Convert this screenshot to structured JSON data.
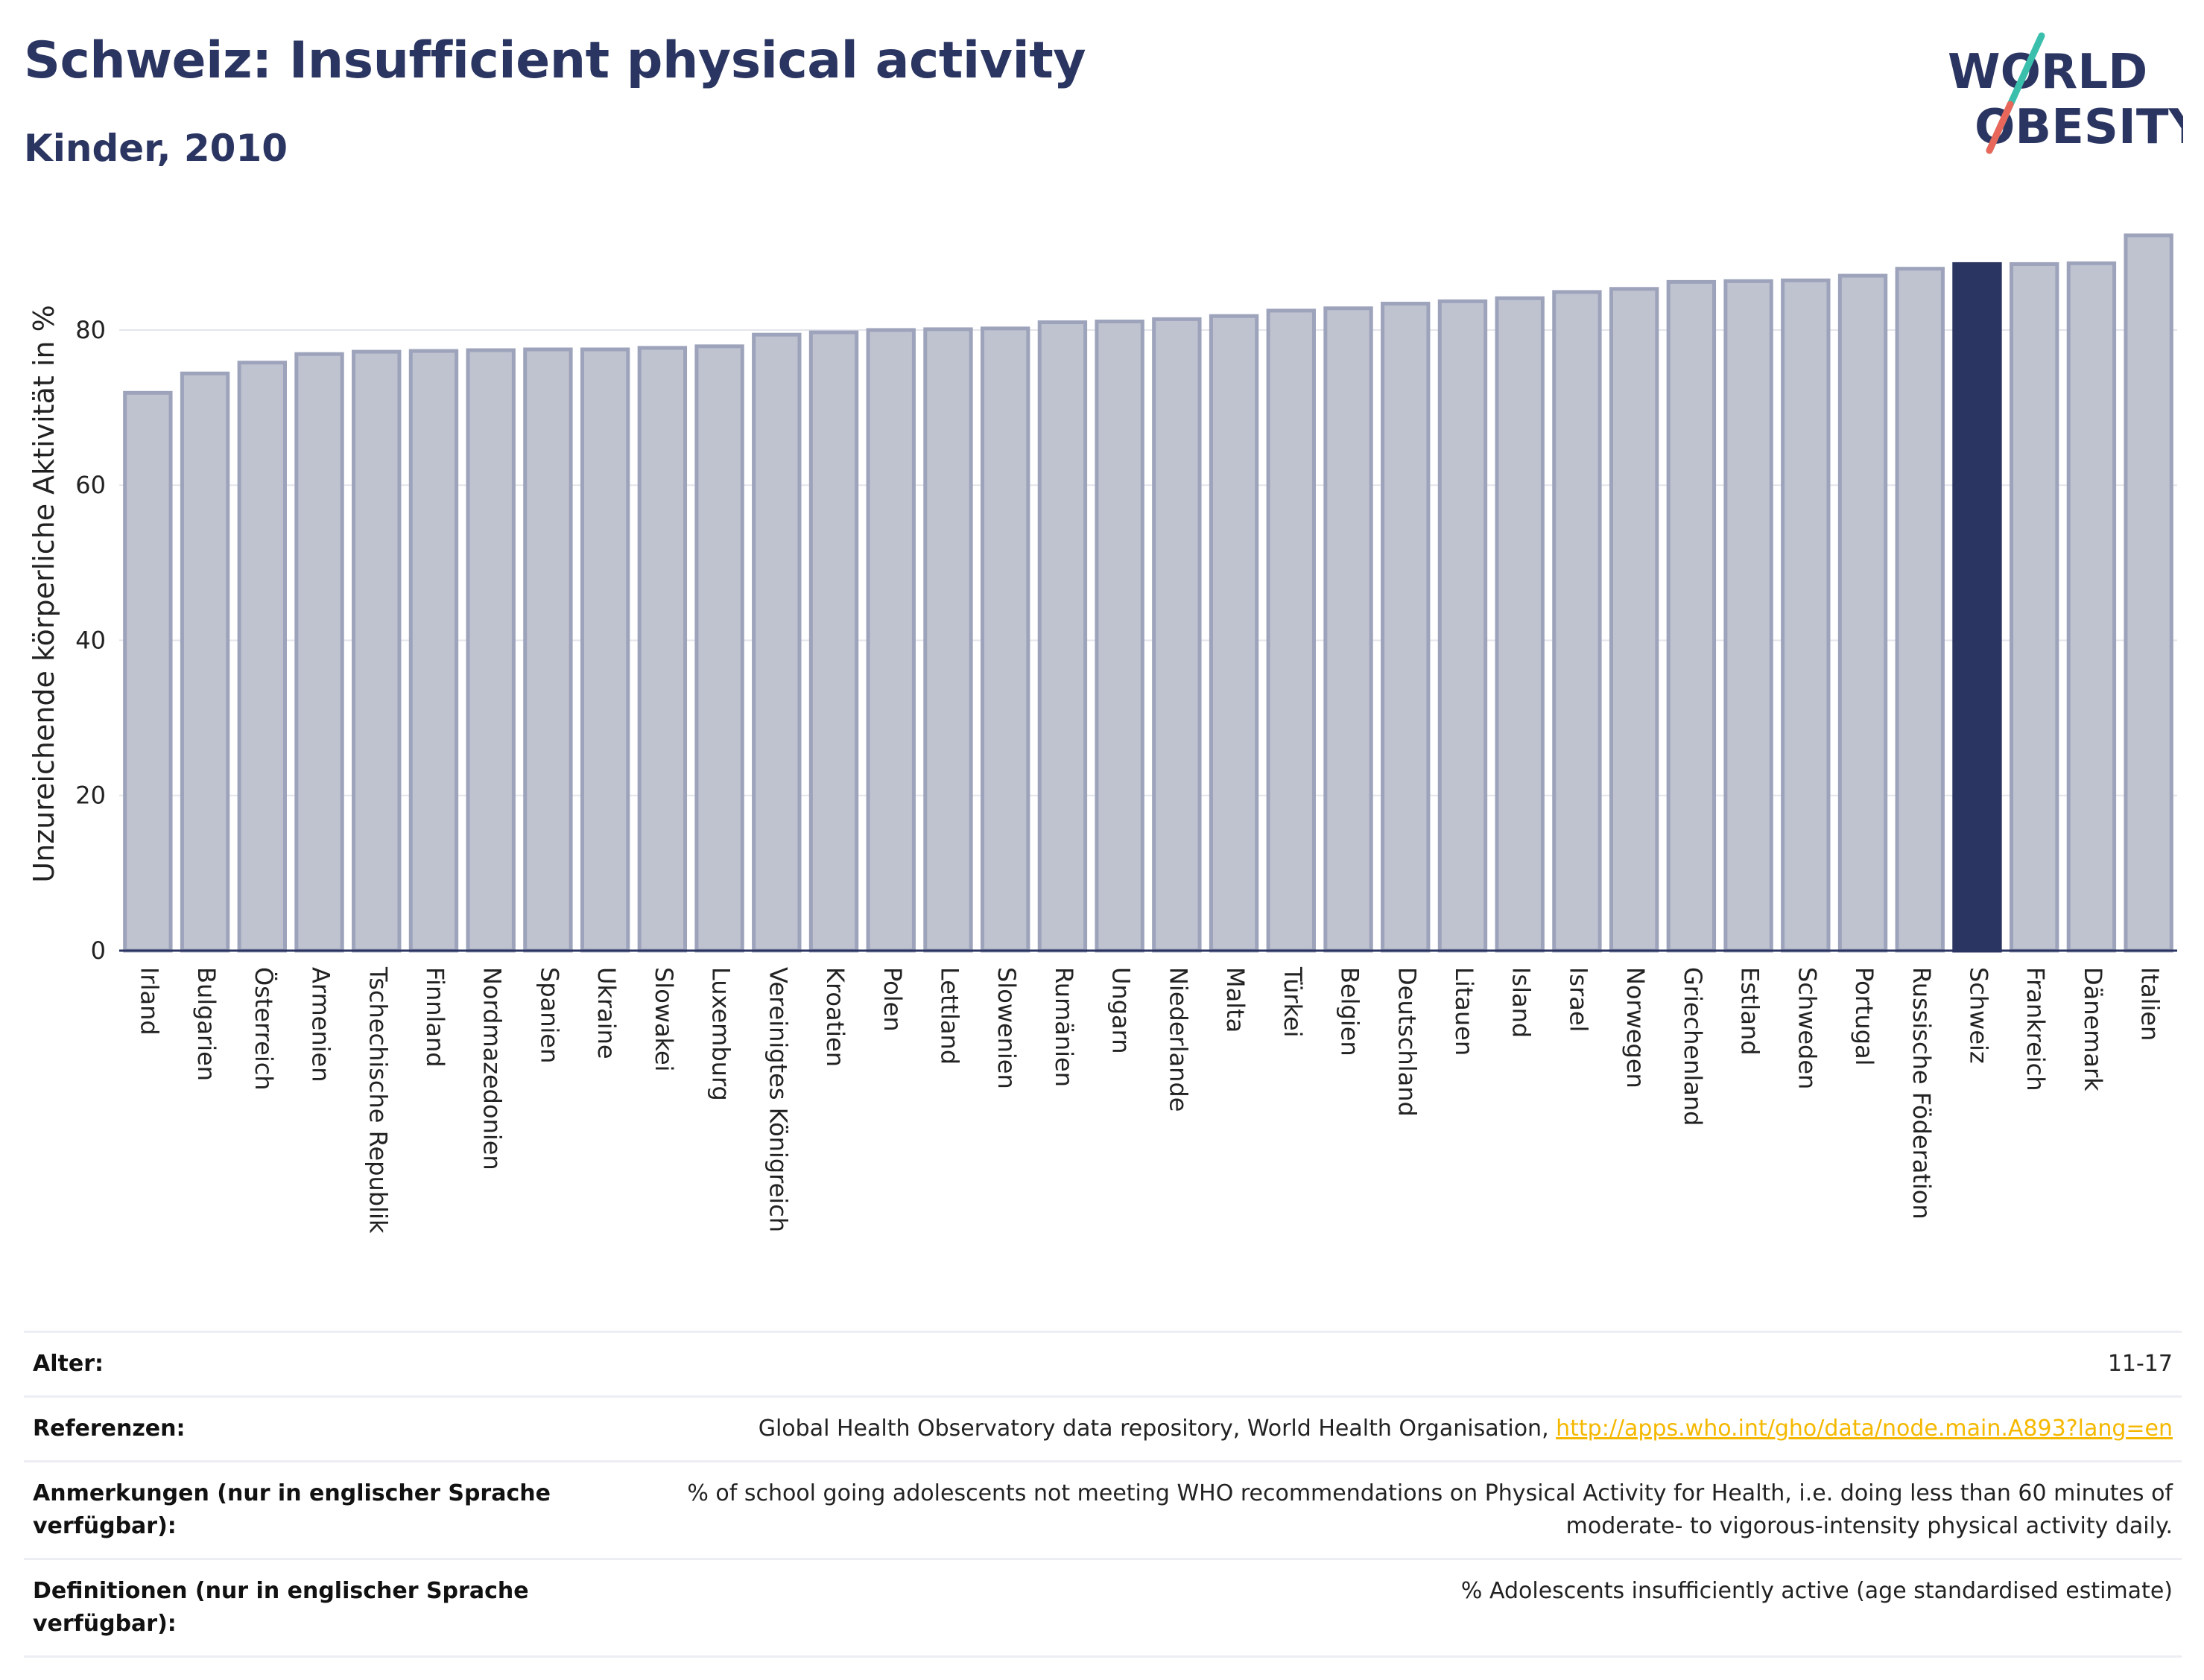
{
  "header": {
    "title": "Schweiz: Insufficient physical activity",
    "subtitle": "Kinder, 2010",
    "logo": {
      "line1": "WORLD",
      "line2": "OBESITY"
    }
  },
  "colors": {
    "bar_default": "#bfc3d0",
    "bar_border": "#9da3bb",
    "bar_highlight": "#2b3561",
    "title": "#2b3561",
    "link": "#f5b800",
    "logo_teal": "#3bbfad",
    "logo_red": "#e8665a"
  },
  "chart_data": {
    "type": "bar",
    "ylabel": "Unzureichende körperliche Aktivität in %",
    "ylim": [
      0,
      92
    ],
    "yticks": [
      0,
      20,
      40,
      60,
      80
    ],
    "highlight": "Schweiz",
    "grid": true,
    "categories": [
      "Irland",
      "Bulgarien",
      "Österreich",
      "Armenien",
      "Tschechische Republik",
      "Finnland",
      "Nordmazedonien",
      "Spanien",
      "Ukraine",
      "Slowakei",
      "Luxemburg",
      "Vereinigtes Königreich",
      "Kroatien",
      "Polen",
      "Lettland",
      "Slowenien",
      "Rumänien",
      "Ungarn",
      "Niederlande",
      "Malta",
      "Türkei",
      "Belgien",
      "Deutschland",
      "Litauen",
      "Island",
      "Israel",
      "Norwegen",
      "Griechenland",
      "Estland",
      "Schweden",
      "Portugal",
      "Russische Föderation",
      "Schweiz",
      "Frankreich",
      "Dänemark",
      "Italien"
    ],
    "values": [
      71.9,
      74.4,
      75.8,
      76.9,
      77.2,
      77.3,
      77.4,
      77.5,
      77.5,
      77.7,
      77.9,
      79.4,
      79.7,
      80.0,
      80.1,
      80.2,
      81.0,
      81.1,
      81.4,
      81.8,
      82.5,
      82.8,
      83.4,
      83.7,
      84.1,
      84.9,
      85.3,
      86.2,
      86.3,
      86.4,
      87.0,
      87.9,
      88.5,
      88.5,
      88.6,
      92.2
    ]
  },
  "meta": [
    {
      "label": "Alter:",
      "value": "11-17"
    },
    {
      "label": "Referenzen:",
      "value": "Global Health Observatory data repository, World Health Organisation, ",
      "link": "http://apps.who.int/gho/data/node.main.A893?lang=en"
    },
    {
      "label": "Anmerkungen (nur in englischer Sprache verfügbar):",
      "value": "% of school going adolescents not meeting WHO recommendations on Physical Activity for Health, i.e. doing less than 60 minutes of moderate- to vigorous-intensity physical activity daily."
    },
    {
      "label": "Definitionen (nur in englischer Sprache verfügbar):",
      "value": "% Adolescents insufficiently active (age standardised estimate)"
    }
  ]
}
